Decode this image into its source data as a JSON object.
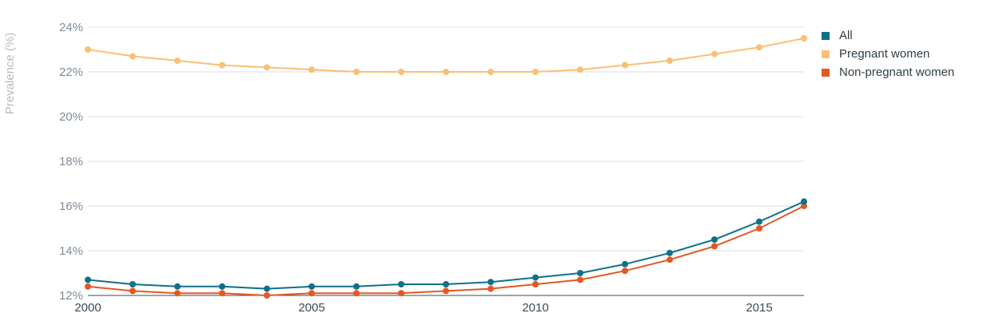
{
  "chart_data": {
    "type": "line",
    "title": "",
    "xlabel": "",
    "ylabel": "Prevalence (%)",
    "x": [
      2000,
      2001,
      2002,
      2003,
      2004,
      2005,
      2006,
      2007,
      2008,
      2009,
      2010,
      2011,
      2012,
      2013,
      2014,
      2015,
      2016
    ],
    "xlim": [
      2000,
      2016
    ],
    "ylim": [
      12,
      24
    ],
    "x_ticks": [
      2000,
      2005,
      2010,
      2015
    ],
    "x_tick_labels": [
      "2000",
      "2005",
      "2010",
      "2015"
    ],
    "y_ticks": [
      12,
      14,
      16,
      18,
      20,
      22,
      24
    ],
    "y_tick_labels": [
      "12%",
      "14%",
      "16%",
      "18%",
      "20%",
      "22%",
      "24%"
    ],
    "grid": "horizontal",
    "legend_position": "top-right",
    "series": [
      {
        "name": "All",
        "color": "#0f7089",
        "values": [
          12.7,
          12.5,
          12.4,
          12.4,
          12.3,
          12.4,
          12.4,
          12.5,
          12.5,
          12.6,
          12.8,
          13.0,
          13.4,
          13.9,
          14.5,
          15.3,
          16.2
        ]
      },
      {
        "name": "Pregnant women",
        "color": "#f9bf76",
        "values": [
          23.0,
          22.7,
          22.5,
          22.3,
          22.2,
          22.1,
          22.0,
          22.0,
          22.0,
          22.0,
          22.0,
          22.1,
          22.3,
          22.5,
          22.8,
          23.1,
          23.5
        ]
      },
      {
        "name": "Non-pregnant women",
        "color": "#e3581f",
        "values": [
          12.4,
          12.2,
          12.1,
          12.1,
          12.0,
          12.1,
          12.1,
          12.1,
          12.2,
          12.3,
          12.5,
          12.7,
          13.1,
          13.6,
          14.2,
          15.0,
          16.0
        ]
      }
    ]
  }
}
